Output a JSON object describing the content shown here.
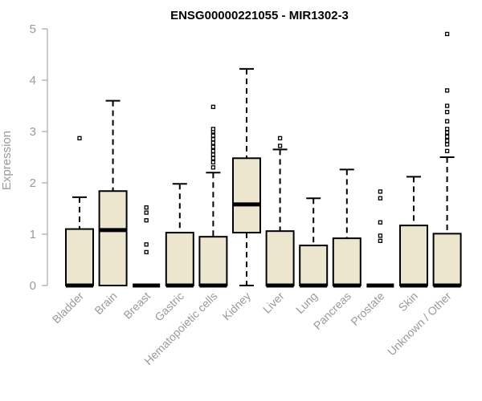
{
  "chart_data": {
    "type": "boxplot",
    "title": "ENSG00000221055 - MIR1302-3",
    "xlabel": "",
    "ylabel": "Expression",
    "ylim": [
      0,
      5
    ],
    "yticks": [
      0,
      1,
      2,
      3,
      4,
      5
    ],
    "grid": false,
    "box_fill": "#ede6ce",
    "categories": [
      "Bladder",
      "Brain",
      "Breast",
      "Gastric",
      "Hematopoietic cells",
      "Kidney",
      "Liver",
      "Lung",
      "Pancreas",
      "Prostate",
      "Skin",
      "Unknown / Other"
    ],
    "boxes": [
      {
        "category": "Bladder",
        "whisker_low": 0,
        "q1": 0,
        "median": 0,
        "q3": 1.1,
        "whisker_high": 1.72,
        "outliers": [
          2.87
        ]
      },
      {
        "category": "Brain",
        "whisker_low": 0,
        "q1": 0,
        "median": 1.08,
        "q3": 1.84,
        "whisker_high": 3.6,
        "outliers": []
      },
      {
        "category": "Breast",
        "whisker_low": 0,
        "q1": 0,
        "median": 0,
        "q3": 0,
        "whisker_high": 0,
        "outliers": [
          1.52,
          1.42,
          1.27,
          0.8,
          0.65
        ]
      },
      {
        "category": "Gastric",
        "whisker_low": 0,
        "q1": 0,
        "median": 0,
        "q3": 1.03,
        "whisker_high": 1.98,
        "outliers": []
      },
      {
        "category": "Hematopoietic cells",
        "whisker_low": 0,
        "q1": 0,
        "median": 0,
        "q3": 0.95,
        "whisker_high": 2.2,
        "outliers": [
          2.3,
          2.4,
          2.48,
          2.55,
          2.62,
          2.7,
          2.78,
          2.85,
          2.92,
          3.0,
          3.05,
          3.48
        ]
      },
      {
        "category": "Kidney",
        "whisker_low": 0,
        "q1": 1.03,
        "median": 1.58,
        "q3": 2.48,
        "whisker_high": 4.22,
        "outliers": []
      },
      {
        "category": "Liver",
        "whisker_low": 0,
        "q1": 0,
        "median": 0,
        "q3": 1.06,
        "whisker_high": 2.65,
        "outliers": [
          2.72,
          2.87
        ]
      },
      {
        "category": "Lung",
        "whisker_low": 0,
        "q1": 0,
        "median": 0,
        "q3": 0.78,
        "whisker_high": 1.7,
        "outliers": []
      },
      {
        "category": "Pancreas",
        "whisker_low": 0,
        "q1": 0,
        "median": 0,
        "q3": 0.92,
        "whisker_high": 2.26,
        "outliers": []
      },
      {
        "category": "Prostate",
        "whisker_low": 0,
        "q1": 0,
        "median": 0,
        "q3": 0,
        "whisker_high": 0,
        "outliers": [
          1.83,
          1.7,
          1.23,
          0.97,
          0.87
        ]
      },
      {
        "category": "Skin",
        "whisker_low": 0,
        "q1": 0,
        "median": 0,
        "q3": 1.17,
        "whisker_high": 2.12,
        "outliers": []
      },
      {
        "category": "Unknown / Other",
        "whisker_low": 0,
        "q1": 0,
        "median": 0,
        "q3": 1.01,
        "whisker_high": 2.5,
        "outliers": [
          2.62,
          2.75,
          2.82,
          2.9,
          2.98,
          3.05,
          3.2,
          3.38,
          3.5,
          3.8,
          4.9
        ]
      }
    ]
  }
}
